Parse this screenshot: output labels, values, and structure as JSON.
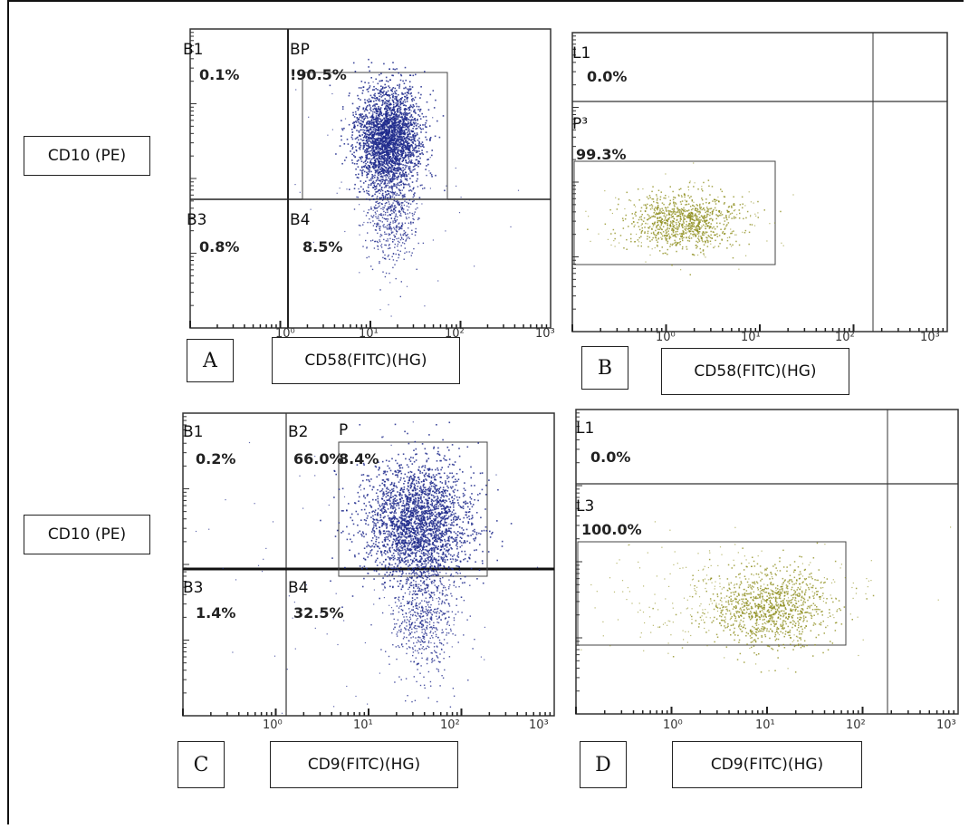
{
  "colors": {
    "blue_dots": "#1f2a8c",
    "yellow_dots": "#8a8a14",
    "axis": "#222222"
  },
  "chart_data": [
    {
      "panel": "A",
      "type": "scatter",
      "ylabel": "CD10 (PE)",
      "xlabel": "CD58(FITC)(HG)",
      "x_log_scale": true,
      "xlim": [
        0.1,
        1000
      ],
      "x_tick_labels": [
        "10⁰",
        "10¹",
        "10²",
        "10³"
      ],
      "quadrants": [
        {
          "name": "B1",
          "percent": "0.1%"
        },
        {
          "name": "BP",
          "percent": "90.5%",
          "shown_as": "BP",
          "shown_value": "!90.5%"
        },
        {
          "name": "B3",
          "percent": "0.8%"
        },
        {
          "name": "B4",
          "percent": "8.5%"
        }
      ],
      "gate": "P",
      "point_color": "#1f2a8c"
    },
    {
      "panel": "B",
      "type": "scatter",
      "xlabel": "CD58(FITC)(HG)",
      "x_log_scale": true,
      "xlim": [
        0.1,
        1000
      ],
      "x_tick_labels": [
        "10⁰",
        "10¹",
        "10²",
        "10³"
      ],
      "regions": [
        {
          "name": "L1",
          "percent": "0.0%"
        },
        {
          "name": "P³",
          "percent": "99.3%"
        }
      ],
      "point_color": "#8a8a14"
    },
    {
      "panel": "C",
      "type": "scatter",
      "ylabel": "CD10 (PE)",
      "xlabel": "CD9(FITC)(HG)",
      "x_log_scale": true,
      "xlim": [
        0.1,
        1000
      ],
      "x_tick_labels": [
        "10⁰",
        "10¹",
        "10²",
        "10³"
      ],
      "quadrants": [
        {
          "name": "B1",
          "percent": "0.2%"
        },
        {
          "name": "B2",
          "percent": "66.0%"
        },
        {
          "name": "B3",
          "percent": "1.4%"
        },
        {
          "name": "B4",
          "percent": "32.5%"
        }
      ],
      "gate": {
        "name": "P",
        "percent": "8.4%"
      },
      "point_color": "#1f2a8c"
    },
    {
      "panel": "D",
      "type": "scatter",
      "xlabel": "CD9(FITC)(HG)",
      "x_log_scale": true,
      "xlim": [
        0.1,
        1000
      ],
      "x_tick_labels": [
        "10⁰",
        "10¹",
        "10²",
        "10³"
      ],
      "regions": [
        {
          "name": "L1",
          "percent": "0.0%"
        },
        {
          "name": "L3",
          "percent": "100.0%"
        }
      ],
      "point_color": "#8a8a14"
    }
  ],
  "labels": {
    "ylabel_top": "CD10 (PE)",
    "ylabel_bottom": "CD10 (PE)",
    "panel_a": "A",
    "panel_b": "B",
    "panel_c": "C",
    "panel_d": "D",
    "xlabel_a": "CD58(FITC)(HG)",
    "xlabel_b": "CD58(FITC)(HG)",
    "xlabel_c": "CD9(FITC)(HG)",
    "xlabel_d": "CD9(FITC)(HG)"
  },
  "text": {
    "a_b1": "B1",
    "a_b1_pct": "0.1%",
    "a_bp": "BP",
    "a_bp_pct": "!90.5%",
    "a_b3": "B3",
    "a_b3_pct": "0.8%",
    "a_b4": "B4",
    "a_b4_pct": "8.5%",
    "b_l1": "L1",
    "b_l1_pct": "0.0%",
    "b_p3": "P³",
    "b_p3_pct": "99.3%",
    "c_b1": "B1",
    "c_b1_pct": "0.2%",
    "c_b2": "B2",
    "c_b2_pct": "66.0%",
    "c_p": "P",
    "c_p_pct": "8.4%",
    "c_b3": "B3",
    "c_b3_pct": "1.4%",
    "c_b4": "B4",
    "c_b4_pct": "32.5%",
    "d_l1": "L1",
    "d_l1_pct": "0.0%",
    "d_l3": "L3",
    "d_l3_pct": "100.0%",
    "t0": "10⁰",
    "t1": "10¹",
    "t2": "10²",
    "t3": "10³"
  }
}
